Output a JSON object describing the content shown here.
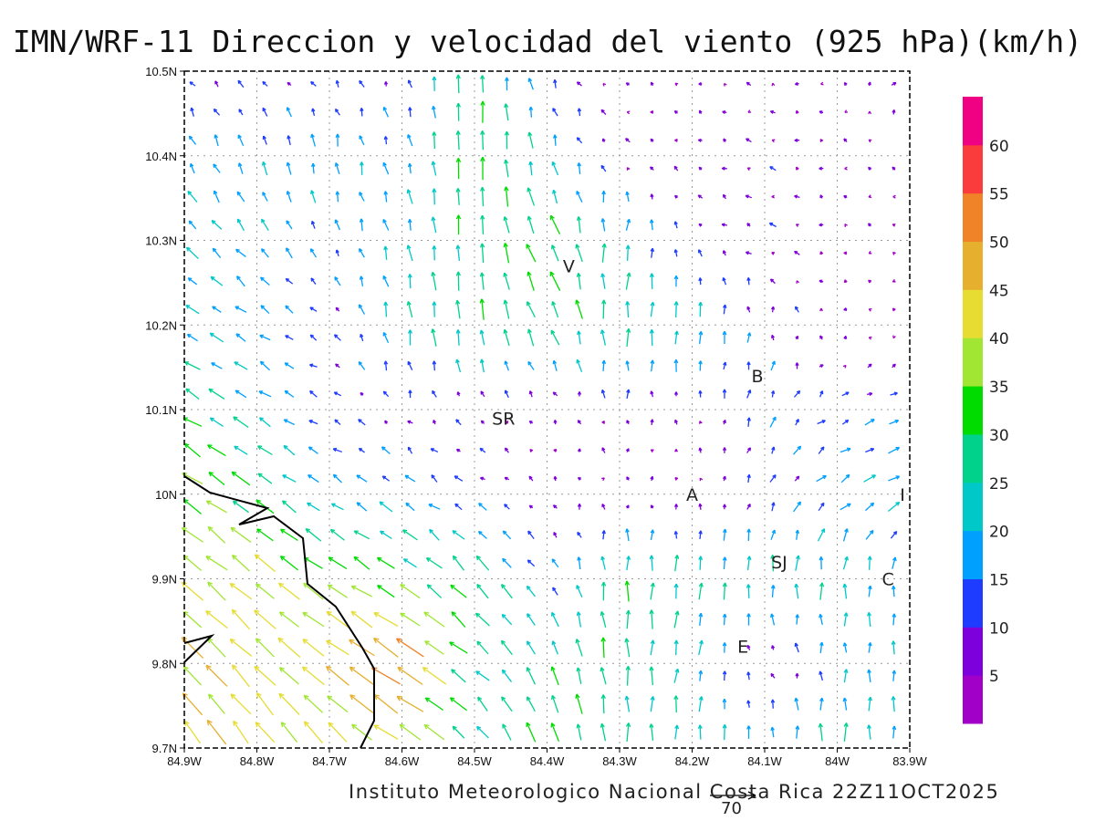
{
  "title": "IMN/WRF-11 Direccion y velocidad del viento (925 hPa)(km/h)",
  "footer": "Instituto Meteorologico Nacional Costa Rica  22Z11OCT2025",
  "reference_vector": {
    "label": "70",
    "speed": 70
  },
  "axes": {
    "lon_labels": [
      "84.9W",
      "84.8W",
      "84.7W",
      "84.6W",
      "84.5W",
      "84.4W",
      "84.3W",
      "84.2W",
      "84.1W",
      "84W",
      "83.9W"
    ],
    "lat_labels": [
      "9.7N",
      "9.8N",
      "9.9N",
      "10N",
      "10.1N",
      "10.2N",
      "10.3N",
      "10.4N",
      "10.5N"
    ],
    "lon_range": [
      -84.9,
      -83.9
    ],
    "lat_range": [
      9.7,
      10.5
    ]
  },
  "colorbar": {
    "labels": [
      "5",
      "10",
      "15",
      "20",
      "25",
      "30",
      "35",
      "40",
      "45",
      "50",
      "55",
      "60"
    ],
    "colors": [
      "#a000c8",
      "#7d00dc",
      "#1e3cff",
      "#00a0ff",
      "#00c8c8",
      "#00d28c",
      "#00dc00",
      "#a0e632",
      "#e6dc32",
      "#e6af2d",
      "#f08228",
      "#fa3c3c",
      "#f00082"
    ]
  },
  "places": [
    {
      "label": "V",
      "lon": -84.37,
      "lat": 10.27
    },
    {
      "label": "B",
      "lon": -84.11,
      "lat": 10.14
    },
    {
      "label": "SR",
      "lon": -84.46,
      "lat": 10.09
    },
    {
      "label": "A",
      "lon": -84.2,
      "lat": 10.0
    },
    {
      "label": "I",
      "lon": -83.91,
      "lat": 10.0
    },
    {
      "label": "SJ",
      "lon": -84.08,
      "lat": 9.92
    },
    {
      "label": "C",
      "lon": -83.93,
      "lat": 9.9
    },
    {
      "label": "E",
      "lon": -84.13,
      "lat": 9.82
    }
  ],
  "wind_field_uv_kmh": {
    "rows_lat_north_to_south": [
      10.5,
      10.4,
      10.3,
      10.2,
      10.1,
      10.0,
      9.9,
      9.8,
      9.7
    ],
    "cols_lon_west_to_east": [
      -84.9,
      -84.8,
      -84.7,
      -84.6,
      -84.5,
      -84.4,
      -84.3,
      -84.2,
      -84.1,
      -84.0,
      -83.9
    ],
    "uv": [
      [
        [
          -5,
          8
        ],
        [
          -8,
          5
        ],
        [
          -6,
          5
        ],
        [
          -3,
          10
        ],
        [
          0,
          30
        ],
        [
          -5,
          10
        ],
        [
          -3,
          2
        ],
        [
          -3,
          2
        ],
        [
          -3,
          1
        ],
        [
          -3,
          1
        ],
        [
          10,
          8
        ]
      ],
      [
        [
          -8,
          15
        ],
        [
          -5,
          18
        ],
        [
          -2,
          20
        ],
        [
          -5,
          15
        ],
        [
          0,
          35
        ],
        [
          -4,
          20
        ],
        [
          -5,
          3
        ],
        [
          -5,
          3
        ],
        [
          -6,
          3
        ],
        [
          -4,
          2
        ],
        [
          -3,
          2
        ]
      ],
      [
        [
          -15,
          15
        ],
        [
          -12,
          15
        ],
        [
          -5,
          12
        ],
        [
          -5,
          20
        ],
        [
          0,
          28
        ],
        [
          -15,
          28
        ],
        [
          5,
          25
        ],
        [
          -5,
          5
        ],
        [
          -8,
          3
        ],
        [
          -3,
          2
        ],
        [
          -3,
          1
        ]
      ],
      [
        [
          -18,
          10
        ],
        [
          -15,
          10
        ],
        [
          -8,
          5
        ],
        [
          -3,
          25
        ],
        [
          -3,
          30
        ],
        [
          -12,
          25
        ],
        [
          0,
          28
        ],
        [
          3,
          25
        ],
        [
          0,
          10
        ],
        [
          -3,
          2
        ],
        [
          -3,
          0
        ]
      ],
      [
        [
          -25,
          15
        ],
        [
          -18,
          12
        ],
        [
          -10,
          5
        ],
        [
          -3,
          5
        ],
        [
          -5,
          5
        ],
        [
          -3,
          3
        ],
        [
          0,
          8
        ],
        [
          -2,
          5
        ],
        [
          5,
          15
        ],
        [
          10,
          5
        ],
        [
          15,
          5
        ]
      ],
      [
        [
          -30,
          20
        ],
        [
          -25,
          18
        ],
        [
          -15,
          10
        ],
        [
          -15,
          12
        ],
        [
          -10,
          5
        ],
        [
          -3,
          5
        ],
        [
          0,
          3
        ],
        [
          -2,
          3
        ],
        [
          5,
          10
        ],
        [
          15,
          10
        ],
        [
          20,
          10
        ]
      ],
      [
        [
          -30,
          25
        ],
        [
          -30,
          25
        ],
        [
          -30,
          20
        ],
        [
          -25,
          15
        ],
        [
          -20,
          25
        ],
        [
          -10,
          10
        ],
        [
          0,
          30
        ],
        [
          3,
          25
        ],
        [
          0,
          25
        ],
        [
          0,
          25
        ],
        [
          0,
          15
        ]
      ],
      [
        [
          -30,
          30
        ],
        [
          -30,
          30
        ],
        [
          -35,
          25
        ],
        [
          -45,
          30
        ],
        [
          -20,
          15
        ],
        [
          -10,
          25
        ],
        [
          -3,
          30
        ],
        [
          5,
          20
        ],
        [
          -5,
          3
        ],
        [
          0,
          15
        ],
        [
          0,
          20
        ]
      ],
      [
        [
          -25,
          35
        ],
        [
          -25,
          35
        ],
        [
          -25,
          30
        ],
        [
          -35,
          20
        ],
        [
          -15,
          20
        ],
        [
          -12,
          30
        ],
        [
          0,
          25
        ],
        [
          0,
          25
        ],
        [
          0,
          20
        ],
        [
          0,
          30
        ],
        [
          0,
          20
        ]
      ]
    ]
  }
}
